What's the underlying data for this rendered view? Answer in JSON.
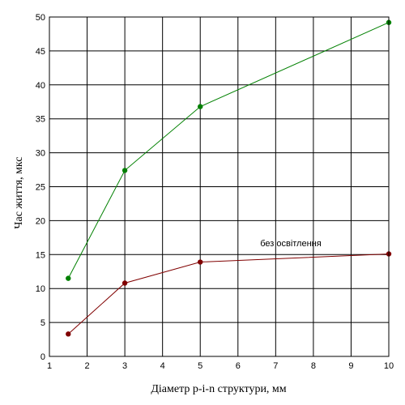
{
  "chart_data": {
    "type": "line",
    "title": "",
    "xlabel": "Діаметр p-i-n структури, мм",
    "ylabel": "Час життя, мкс",
    "xlim": [
      1,
      10
    ],
    "ylim": [
      0,
      50
    ],
    "x_tick_labels": [
      "1",
      "2",
      "3",
      "4",
      "5",
      "6",
      "7",
      "8",
      "9",
      "10"
    ],
    "y_tick_labels": [
      "0",
      "5",
      "10",
      "15",
      "20",
      "25",
      "30",
      "35",
      "40",
      "45",
      "50"
    ],
    "grid": true,
    "legend": "none",
    "x": [
      1.5,
      3,
      5,
      10
    ],
    "series": [
      {
        "color": "#008000",
        "values": [
          11.5,
          27.4,
          36.8,
          49.2
        ]
      },
      {
        "color": "#800000",
        "values": [
          3.3,
          10.8,
          13.9,
          15.1
        ]
      }
    ],
    "annotations": [
      {
        "text": "без освітлення",
        "x": 7.4,
        "y": 16.2
      }
    ]
  }
}
